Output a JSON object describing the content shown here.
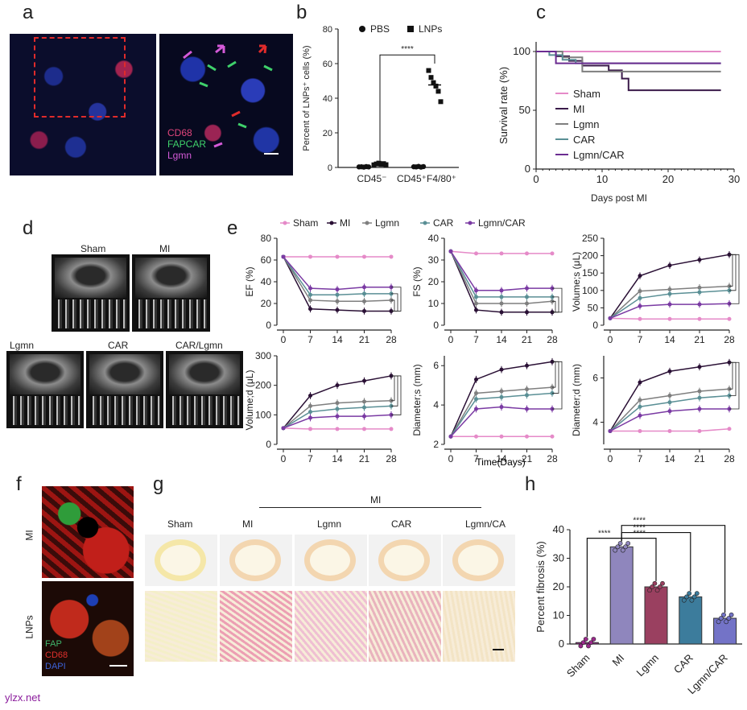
{
  "panel_letters": {
    "a": "a",
    "b": "b",
    "c": "c",
    "d": "d",
    "e": "e",
    "f": "f",
    "g": "g",
    "h": "h"
  },
  "panel_a": {
    "labels": [
      "CD68",
      "FAPCAR",
      "Lgmn"
    ],
    "label_colors": [
      "#e0457b",
      "#3fd16b",
      "#d45ad8"
    ]
  },
  "panel_b": {
    "chart_data": {
      "type": "scatter",
      "ylabel": "Percent of LNPs⁺ cells (%)",
      "ylim": [
        0,
        80
      ],
      "yticks": [
        "0",
        "20",
        "40",
        "60",
        "80"
      ],
      "categories": [
        "CD45⁻",
        "CD45⁺F4/80⁺"
      ],
      "legend": [
        {
          "name": "PBS",
          "marker": "circle"
        },
        {
          "name": "LNPs",
          "marker": "square"
        }
      ],
      "series": [
        {
          "name": "PBS",
          "values": [
            [
              0.3,
              0.4,
              0.2,
              0.5,
              0.3
            ],
            [
              0.4,
              0.3,
              0.6,
              0.2,
              0.5
            ]
          ]
        },
        {
          "name": "LNPs",
          "values": [
            [
              1.5,
              2.0,
              2.5,
              1.8,
              2.2,
              1.6
            ],
            [
              56,
              52,
              49,
              47,
              44,
              38
            ]
          ]
        }
      ],
      "significance": "****"
    }
  },
  "panel_c": {
    "chart_data": {
      "type": "line",
      "xlabel": "Days post MI",
      "ylabel": "Survival rate (%)",
      "xlim": [
        0,
        30
      ],
      "ylim": [
        0,
        100
      ],
      "xticks": [
        "0",
        "10",
        "20",
        "30"
      ],
      "yticks": [
        "0",
        "50",
        "100"
      ],
      "series": [
        {
          "name": "Sham",
          "color": "#e58ac8",
          "x": [
            0,
            28
          ],
          "y": [
            100,
            100
          ]
        },
        {
          "name": "MI",
          "color": "#3a1a4a",
          "x": [
            0,
            3,
            5,
            7,
            11,
            13,
            14,
            28
          ],
          "y": [
            100,
            96,
            92,
            88,
            84,
            77,
            67,
            67
          ]
        },
        {
          "name": "Lgmn",
          "color": "#7f7f7f",
          "x": [
            0,
            4,
            7,
            28
          ],
          "y": [
            100,
            95,
            83,
            83
          ]
        },
        {
          "name": "CAR",
          "color": "#5a8f95",
          "x": [
            0,
            2,
            4,
            6,
            10,
            28
          ],
          "y": [
            100,
            97,
            93,
            90,
            90,
            90
          ]
        },
        {
          "name": "Lgmn/CAR",
          "color": "#6b2c91",
          "x": [
            0,
            3,
            28
          ],
          "y": [
            100,
            90,
            90
          ]
        }
      ]
    }
  },
  "panel_d": {
    "labels": [
      "Sham",
      "MI",
      "Lgmn",
      "CAR",
      "CAR/Lgmn"
    ]
  },
  "panel_e": {
    "legend": [
      "Sham",
      "MI",
      "Lgmn",
      "CAR",
      "Lgmn/CAR"
    ],
    "colors": [
      "#e58ac8",
      "#2a1035",
      "#7f7f7f",
      "#5a8f95",
      "#7a3aa3"
    ],
    "xticks": [
      "0",
      "7",
      "14",
      "21",
      "28"
    ],
    "xlabel": "Time(Days)",
    "chart_data": [
      {
        "type": "line",
        "ylabel": "EF (%)",
        "ylim": [
          0,
          80
        ],
        "yticks": [
          "0",
          "20",
          "40",
          "60",
          "80"
        ],
        "x": [
          0,
          7,
          14,
          21,
          28
        ],
        "series": [
          [
            63,
            63,
            63,
            63,
            63
          ],
          [
            63,
            15,
            14,
            13,
            13
          ],
          [
            63,
            23,
            22,
            22,
            23
          ],
          [
            63,
            28,
            28,
            29,
            29
          ],
          [
            63,
            34,
            33,
            35,
            35
          ]
        ]
      },
      {
        "type": "line",
        "ylabel": "FS (%)",
        "ylim": [
          0,
          40
        ],
        "yticks": [
          "0",
          "10",
          "20",
          "30",
          "40"
        ],
        "x": [
          0,
          7,
          14,
          21,
          28
        ],
        "series": [
          [
            34,
            33,
            33,
            33,
            33
          ],
          [
            34,
            7,
            6,
            6,
            6
          ],
          [
            34,
            10,
            10,
            10,
            11
          ],
          [
            34,
            13,
            13,
            13,
            13
          ],
          [
            34,
            16,
            16,
            17,
            17
          ]
        ]
      },
      {
        "type": "line",
        "ylabel": "Volume;s (μL)",
        "ylim": [
          0,
          250
        ],
        "yticks": [
          "0",
          "50",
          "100",
          "150",
          "200",
          "250"
        ],
        "x": [
          0,
          7,
          14,
          21,
          28
        ],
        "series": [
          [
            20,
            18,
            18,
            18,
            18
          ],
          [
            20,
            142,
            172,
            188,
            203
          ],
          [
            20,
            98,
            103,
            108,
            112
          ],
          [
            20,
            78,
            90,
            95,
            100
          ],
          [
            20,
            55,
            60,
            60,
            62
          ]
        ]
      },
      {
        "type": "line",
        "ylabel": "Volume;d (μL)",
        "ylim": [
          0,
          300
        ],
        "yticks": [
          "0",
          "100",
          "200",
          "300"
        ],
        "x": [
          0,
          7,
          14,
          21,
          28
        ],
        "series": [
          [
            55,
            52,
            52,
            52,
            52
          ],
          [
            55,
            165,
            200,
            215,
            232
          ],
          [
            55,
            130,
            140,
            145,
            148
          ],
          [
            55,
            110,
            120,
            125,
            130
          ],
          [
            55,
            90,
            95,
            95,
            100
          ]
        ]
      },
      {
        "type": "line",
        "ylabel": "Diameter;s (mm)",
        "ylim": [
          2,
          6.5
        ],
        "yticks": [
          "2",
          "4",
          "6"
        ],
        "x": [
          0,
          7,
          14,
          21,
          28
        ],
        "series": [
          [
            2.4,
            2.4,
            2.4,
            2.4,
            2.4
          ],
          [
            2.4,
            5.3,
            5.8,
            6.0,
            6.2
          ],
          [
            2.4,
            4.6,
            4.7,
            4.8,
            4.9
          ],
          [
            2.4,
            4.3,
            4.4,
            4.5,
            4.6
          ],
          [
            2.4,
            3.8,
            3.9,
            3.8,
            3.8
          ]
        ]
      },
      {
        "type": "line",
        "ylabel": "Diameter;d (mm)",
        "ylim": [
          3,
          7
        ],
        "yticks": [
          "4",
          "6"
        ],
        "x": [
          0,
          7,
          14,
          21,
          28
        ],
        "series": [
          [
            3.6,
            3.6,
            3.6,
            3.6,
            3.7
          ],
          [
            3.6,
            5.8,
            6.3,
            6.5,
            6.7
          ],
          [
            3.6,
            5.0,
            5.2,
            5.4,
            5.5
          ],
          [
            3.6,
            4.7,
            4.9,
            5.1,
            5.2
          ],
          [
            3.6,
            4.3,
            4.5,
            4.6,
            4.6
          ]
        ]
      }
    ]
  },
  "panel_f": {
    "side_labels": [
      "MI",
      "LNPs"
    ],
    "stain_labels": [
      "FAP",
      "CD68",
      "DAPI"
    ],
    "stain_colors": [
      "#3fb56b",
      "#e0302c",
      "#3c62d8"
    ]
  },
  "panel_g": {
    "group_label": "MI",
    "columns": [
      "Sham",
      "MI",
      "Lgmn",
      "CAR",
      "Lgmn/CA"
    ]
  },
  "panel_h": {
    "chart_data": {
      "type": "bar",
      "ylabel": "Percent fibrosis (%)",
      "ylim": [
        0,
        40
      ],
      "yticks": [
        "0",
        "10",
        "20",
        "30",
        "40"
      ],
      "categories": [
        "Sham",
        "MI",
        "Lgmn",
        "CAR",
        "Lgmn/CAR"
      ],
      "values": [
        0.5,
        34,
        20,
        16.5,
        9
      ],
      "colors": [
        "#9b2a8c",
        "#8f86bd",
        "#9a4060",
        "#3c7c9c",
        "#7373c7"
      ],
      "significance": [
        "****",
        "****",
        "****",
        "****"
      ]
    }
  },
  "watermark": "ylzx.net"
}
